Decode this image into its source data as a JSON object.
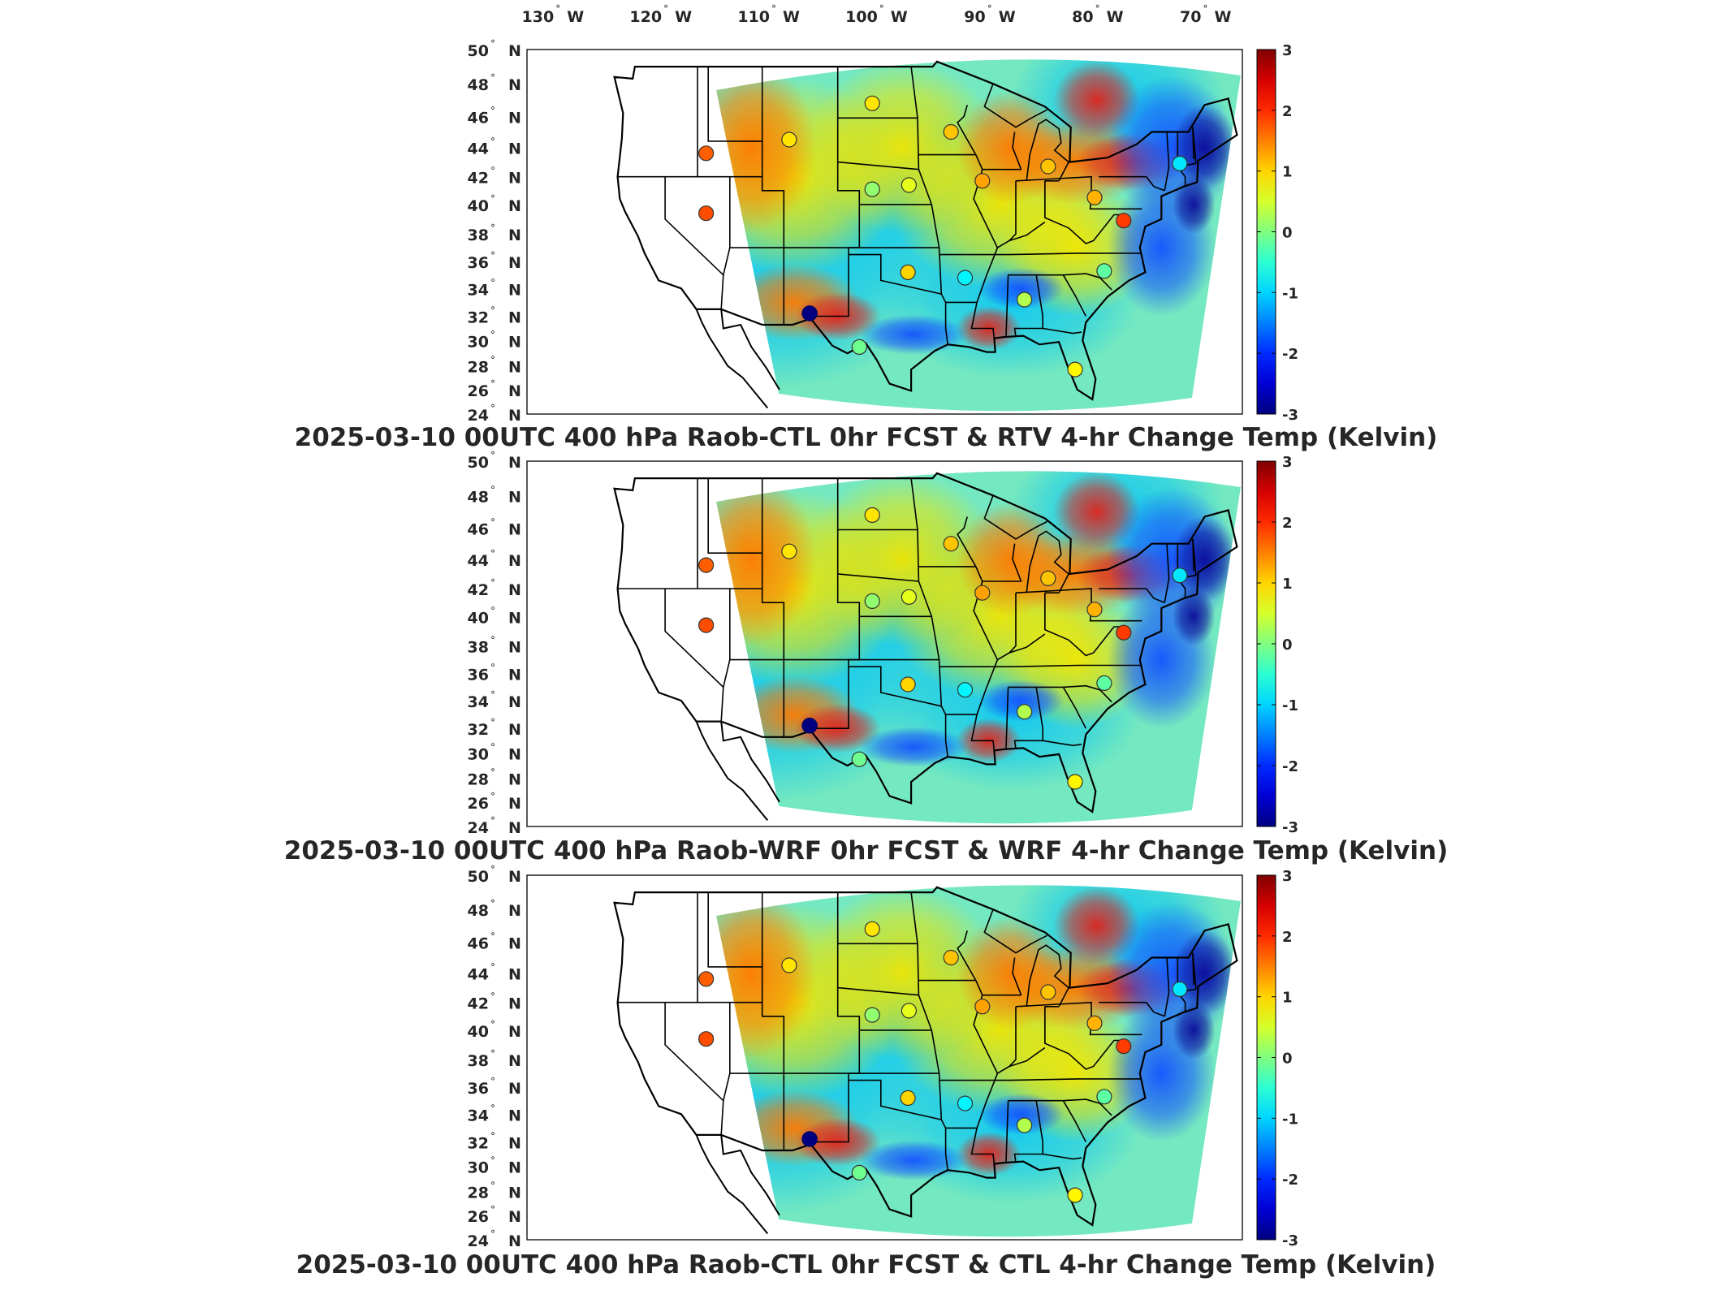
{
  "chart_data": [
    {
      "type": "heatmap",
      "title": "2025-03-10 00UTC 400 hPa Raob-CTL 0hr FCST & RTV 4-hr Change Temp (Kelvin)",
      "xlabel": "",
      "ylabel": "",
      "x_ticks": [
        "130° W",
        "120° W",
        "110° W",
        "100° W",
        "90° W",
        "80° W",
        "70° W"
      ],
      "y_ticks": [
        "50° N",
        "48° N",
        "46° N",
        "44° N",
        "42° N",
        "40° N",
        "38° N",
        "36° N",
        "34° N",
        "32° N",
        "30° N",
        "28° N",
        "26° N",
        "24° N"
      ],
      "xlim": [
        -135,
        -64
      ],
      "ylim": [
        24,
        50
      ],
      "colorbar": {
        "min": -3,
        "max": 3,
        "ticks": [
          "3",
          "2",
          "1",
          "0",
          "-1",
          "-2",
          "-3"
        ]
      },
      "grid": false,
      "points": [
        {
          "lon": -116.2,
          "lat": 43.6,
          "value": 1.7
        },
        {
          "lon": -116.2,
          "lat": 39.4,
          "value": 1.8
        },
        {
          "lon": -106.6,
          "lat": 32.2,
          "value": -3.0
        },
        {
          "lon": -100.8,
          "lat": 46.8,
          "value": 0.9
        },
        {
          "lon": -108.5,
          "lat": 44.5,
          "value": 0.9
        },
        {
          "lon": -100.8,
          "lat": 41.1,
          "value": 0.1
        },
        {
          "lon": -97.4,
          "lat": 41.4,
          "value": 0.6
        },
        {
          "lon": -93.5,
          "lat": 45.0,
          "value": 1.1
        },
        {
          "lon": -90.6,
          "lat": 41.7,
          "value": 1.3
        },
        {
          "lon": -97.5,
          "lat": 35.2,
          "value": 1.0
        },
        {
          "lon": -92.2,
          "lat": 34.8,
          "value": -0.8
        },
        {
          "lon": -84.5,
          "lat": 42.7,
          "value": 1.1
        },
        {
          "lon": -80.2,
          "lat": 40.5,
          "value": 1.2
        },
        {
          "lon": -77.5,
          "lat": 38.9,
          "value": 1.9
        },
        {
          "lon": -72.3,
          "lat": 42.9,
          "value": -0.9
        },
        {
          "lon": -79.3,
          "lat": 35.3,
          "value": -0.2
        },
        {
          "lon": -86.7,
          "lat": 33.2,
          "value": 0.3
        },
        {
          "lon": -82.0,
          "lat": 27.7,
          "value": 0.8
        },
        {
          "lon": -102.0,
          "lat": 29.5,
          "value": -0.1
        }
      ]
    },
    {
      "type": "heatmap",
      "title": "2025-03-10 00UTC 400 hPa Raob-WRF 0hr FCST & WRF 4-hr Change Temp (Kelvin)",
      "xlabel": "",
      "ylabel": "",
      "x_ticks": [],
      "y_ticks": [
        "50° N",
        "48° N",
        "46° N",
        "44° N",
        "42° N",
        "40° N",
        "38° N",
        "36° N",
        "34° N",
        "32° N",
        "30° N",
        "28° N",
        "26° N",
        "24° N"
      ],
      "xlim": [
        -135,
        -64
      ],
      "ylim": [
        24,
        50
      ],
      "colorbar": {
        "min": -3,
        "max": 3,
        "ticks": [
          "3",
          "2",
          "1",
          "0",
          "-1",
          "-2",
          "-3"
        ]
      },
      "grid": false,
      "points": [
        {
          "lon": -116.2,
          "lat": 43.6,
          "value": 1.7
        },
        {
          "lon": -116.2,
          "lat": 39.4,
          "value": 1.8
        },
        {
          "lon": -106.6,
          "lat": 32.2,
          "value": -3.0
        },
        {
          "lon": -100.8,
          "lat": 46.8,
          "value": 0.9
        },
        {
          "lon": -108.5,
          "lat": 44.5,
          "value": 0.9
        },
        {
          "lon": -100.8,
          "lat": 41.1,
          "value": 0.1
        },
        {
          "lon": -97.4,
          "lat": 41.4,
          "value": 0.6
        },
        {
          "lon": -93.5,
          "lat": 45.0,
          "value": 1.1
        },
        {
          "lon": -90.6,
          "lat": 41.7,
          "value": 1.3
        },
        {
          "lon": -97.5,
          "lat": 35.2,
          "value": 1.0
        },
        {
          "lon": -92.2,
          "lat": 34.8,
          "value": -0.8
        },
        {
          "lon": -84.5,
          "lat": 42.7,
          "value": 1.1
        },
        {
          "lon": -80.2,
          "lat": 40.5,
          "value": 1.2
        },
        {
          "lon": -77.5,
          "lat": 38.9,
          "value": 1.9
        },
        {
          "lon": -72.3,
          "lat": 42.9,
          "value": -0.9
        },
        {
          "lon": -79.3,
          "lat": 35.3,
          "value": -0.2
        },
        {
          "lon": -86.7,
          "lat": 33.2,
          "value": 0.3
        },
        {
          "lon": -82.0,
          "lat": 27.7,
          "value": 0.8
        },
        {
          "lon": -102.0,
          "lat": 29.5,
          "value": -0.1
        }
      ]
    },
    {
      "type": "heatmap",
      "title": "2025-03-10 00UTC 400 hPa Raob-CTL 0hr FCST & CTL 4-hr Change Temp (Kelvin)",
      "xlabel": "",
      "ylabel": "",
      "x_ticks": [],
      "y_ticks": [
        "50° N",
        "48° N",
        "46° N",
        "44° N",
        "42° N",
        "40° N",
        "38° N",
        "36° N",
        "34° N",
        "32° N",
        "30° N",
        "28° N",
        "26° N",
        "24° N"
      ],
      "xlim": [
        -135,
        -64
      ],
      "ylim": [
        24,
        50
      ],
      "colorbar": {
        "min": -3,
        "max": 3,
        "ticks": [
          "3",
          "2",
          "1",
          "0",
          "-1",
          "-2",
          "-3"
        ]
      },
      "grid": false,
      "points": [
        {
          "lon": -116.2,
          "lat": 43.6,
          "value": 1.7
        },
        {
          "lon": -116.2,
          "lat": 39.4,
          "value": 1.8
        },
        {
          "lon": -106.6,
          "lat": 32.2,
          "value": -3.0
        },
        {
          "lon": -100.8,
          "lat": 46.8,
          "value": 0.9
        },
        {
          "lon": -108.5,
          "lat": 44.5,
          "value": 0.9
        },
        {
          "lon": -100.8,
          "lat": 41.1,
          "value": 0.1
        },
        {
          "lon": -97.4,
          "lat": 41.4,
          "value": 0.6
        },
        {
          "lon": -93.5,
          "lat": 45.0,
          "value": 1.1
        },
        {
          "lon": -90.6,
          "lat": 41.7,
          "value": 1.3
        },
        {
          "lon": -97.5,
          "lat": 35.2,
          "value": 1.0
        },
        {
          "lon": -92.2,
          "lat": 34.8,
          "value": -0.8
        },
        {
          "lon": -84.5,
          "lat": 42.7,
          "value": 1.1
        },
        {
          "lon": -80.2,
          "lat": 40.5,
          "value": 1.2
        },
        {
          "lon": -77.5,
          "lat": 38.9,
          "value": 1.9
        },
        {
          "lon": -72.3,
          "lat": 42.9,
          "value": -0.9
        },
        {
          "lon": -79.3,
          "lat": 35.3,
          "value": -0.2
        },
        {
          "lon": -86.7,
          "lat": 33.2,
          "value": 0.3
        },
        {
          "lon": -82.0,
          "lat": 27.7,
          "value": 0.8
        },
        {
          "lon": -102.0,
          "lat": 29.5,
          "value": -0.1
        }
      ]
    }
  ]
}
